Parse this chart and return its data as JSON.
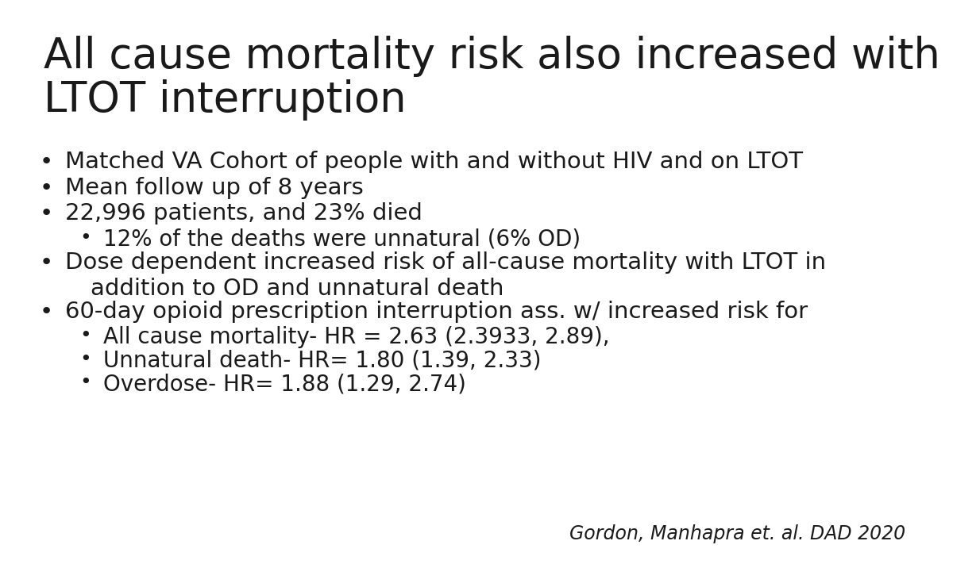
{
  "background_color": "#ffffff",
  "title_line1": "All cause mortality risk also increased with",
  "title_line2": "LTOT interruption",
  "title_fontsize": 38,
  "title_color": "#1a1a1a",
  "bullet_color": "#1a1a1a",
  "bullet_fontsize": 21,
  "sub_bullet_fontsize": 20,
  "citation": "Gordon, Manhapra et. al. DAD 2020",
  "citation_fontsize": 17,
  "bullets": [
    {
      "level": 1,
      "text": "Matched VA Cohort of people with and without HIV and on LTOT",
      "extra_space": false
    },
    {
      "level": 1,
      "text": "Mean follow up of 8 years",
      "extra_space": false
    },
    {
      "level": 1,
      "text": "22,996 patients, and 23% died",
      "extra_space": false
    },
    {
      "level": 2,
      "text": "12% of the deaths were unnatural (6% OD)",
      "extra_space": false
    },
    {
      "level": 1,
      "text": "Dose dependent increased risk of all-cause mortality with LTOT in",
      "extra_space": false
    },
    {
      "level": 1,
      "text": "addition to OD and unnatural death",
      "extra_space": false,
      "continuation": true
    },
    {
      "level": 1,
      "text": "60-day opioid prescription interruption ass. w/ increased risk for",
      "extra_space": false
    },
    {
      "level": 2,
      "text": "All cause mortality- HR = 2.63 (2.3933, 2.89),",
      "extra_space": false
    },
    {
      "level": 2,
      "text": "Unnatural death- HR= 1.80 (1.39, 2.33)",
      "extra_space": false
    },
    {
      "level": 2,
      "text": "Overdose- HR= 1.88 (1.29, 2.74)",
      "extra_space": false
    }
  ]
}
